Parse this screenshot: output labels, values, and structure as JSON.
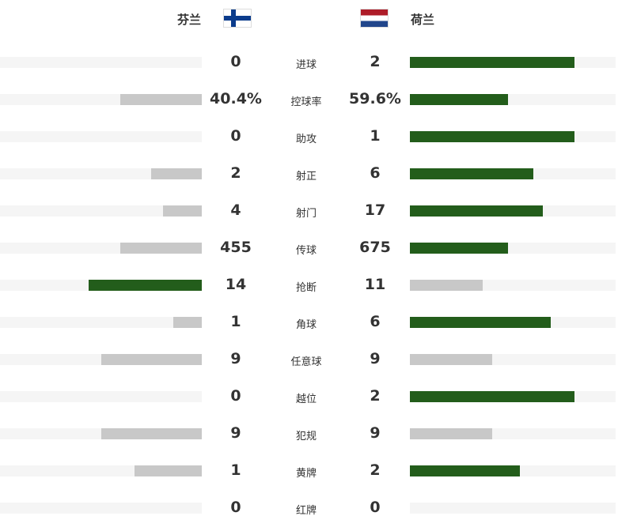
{
  "teams": {
    "home": {
      "name": "芬兰",
      "flag_icon": "finland-flag-icon"
    },
    "away": {
      "name": "荷兰",
      "flag_icon": "netherlands-flag-icon"
    }
  },
  "colors": {
    "leader": "#235d1b",
    "trailer": "#c8c8c8",
    "track": "#f5f5f5"
  },
  "chart_data": {
    "type": "bar",
    "categories": [
      "进球",
      "控球率",
      "助攻",
      "射正",
      "射门",
      "传球",
      "抢断",
      "角球",
      "任意球",
      "越位",
      "犯规",
      "黄牌",
      "红牌"
    ],
    "series": [
      {
        "name": "芬兰",
        "values": [
          0,
          40.4,
          0,
          2,
          4,
          455,
          14,
          1,
          9,
          0,
          9,
          1,
          0
        ],
        "labels": [
          "0",
          "40.4%",
          "0",
          "2",
          "4",
          "455",
          "14",
          "1",
          "9",
          "0",
          "9",
          "1",
          "0"
        ]
      },
      {
        "name": "荷兰",
        "values": [
          2,
          59.6,
          1,
          6,
          17,
          675,
          11,
          6,
          9,
          2,
          9,
          2,
          0
        ],
        "labels": [
          "2",
          "59.6%",
          "1",
          "6",
          "17",
          "675",
          "11",
          "6",
          "9",
          "2",
          "9",
          "2",
          "0"
        ]
      }
    ]
  }
}
